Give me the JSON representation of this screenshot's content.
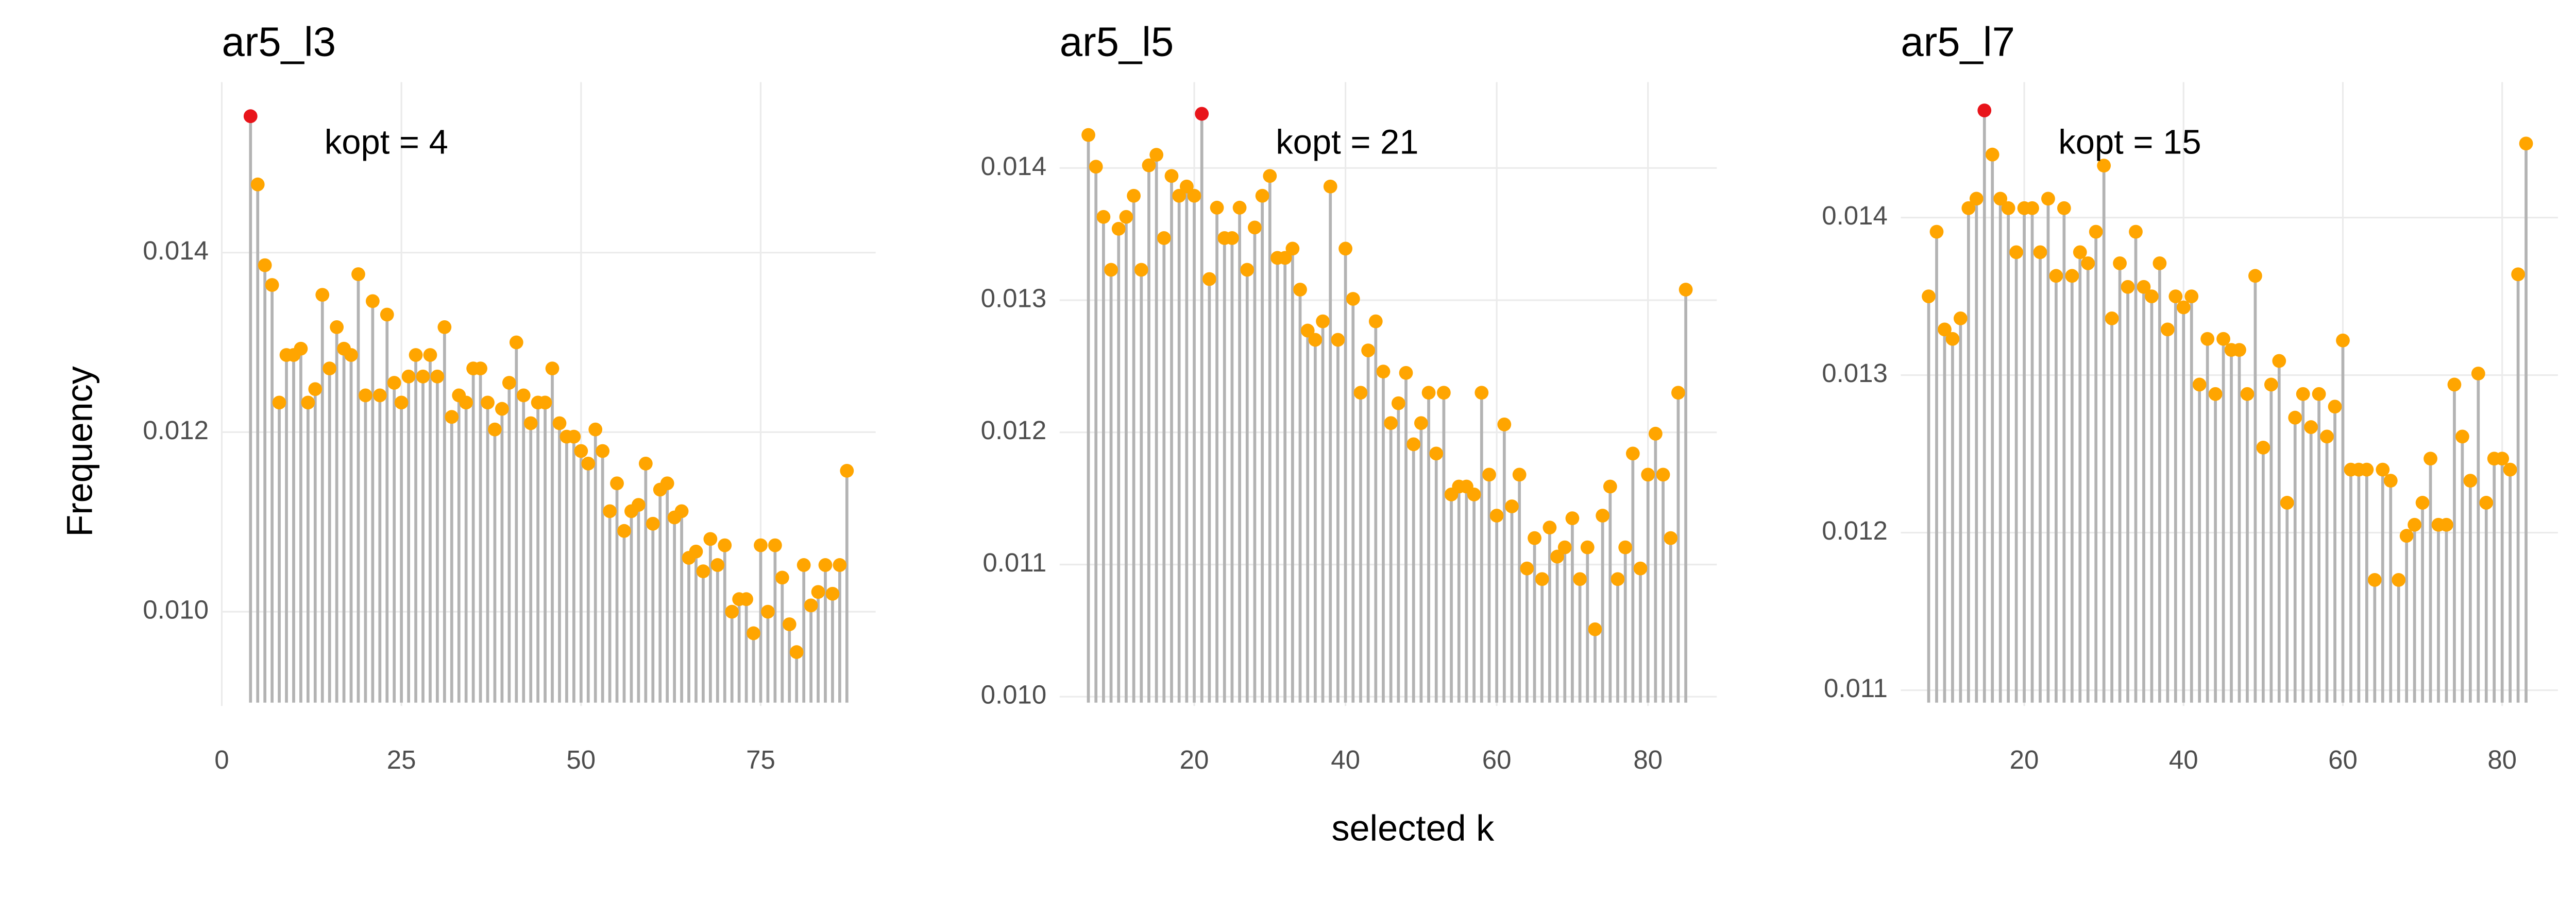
{
  "chart_data": [
    {
      "type": "lollipop",
      "title": "ar5_l3",
      "annotation": "kopt = 4",
      "ylabel": "Frequency",
      "x": [
        4,
        5,
        6,
        7,
        8,
        9,
        10,
        11,
        12,
        13,
        14,
        15,
        16,
        17,
        18,
        19,
        20,
        21,
        22,
        23,
        24,
        25,
        26,
        27,
        28,
        29,
        30,
        31,
        32,
        33,
        34,
        35,
        36,
        37,
        38,
        39,
        40,
        41,
        42,
        43,
        44,
        45,
        46,
        47,
        48,
        49,
        50,
        51,
        52,
        53,
        54,
        55,
        56,
        57,
        58,
        59,
        60,
        61,
        62,
        63,
        64,
        65,
        66,
        67,
        68,
        69,
        70,
        71,
        72,
        73,
        74,
        75,
        76,
        77,
        78,
        79,
        80,
        81,
        82,
        83,
        84,
        85,
        86,
        87
      ],
      "values": [
        0.01552,
        0.01476,
        0.01386,
        0.01364,
        0.01233,
        0.01286,
        0.01286,
        0.01293,
        0.01233,
        0.01248,
        0.01353,
        0.01271,
        0.01317,
        0.01293,
        0.01286,
        0.01376,
        0.01241,
        0.01346,
        0.01241,
        0.01331,
        0.01255,
        0.01233,
        0.01262,
        0.01286,
        0.01262,
        0.01286,
        0.01262,
        0.01317,
        0.01217,
        0.01241,
        0.01233,
        0.01271,
        0.01271,
        0.01233,
        0.01203,
        0.01226,
        0.01255,
        0.013,
        0.01241,
        0.0121,
        0.01233,
        0.01233,
        0.01271,
        0.0121,
        0.01195,
        0.01195,
        0.01179,
        0.01165,
        0.01203,
        0.01179,
        0.01112,
        0.01143,
        0.0109,
        0.01112,
        0.01119,
        0.01165,
        0.01098,
        0.01136,
        0.01143,
        0.01105,
        0.01112,
        0.0106,
        0.01067,
        0.01045,
        0.01081,
        0.01052,
        0.01074,
        0.01,
        0.01014,
        0.01014,
        0.00976,
        0.01074,
        0.01,
        0.01074,
        0.01038,
        0.00986,
        0.00955,
        0.01052,
        0.01007,
        0.01022,
        0.01052,
        0.0102,
        0.01052,
        0.01157
      ],
      "color": "#ffa500",
      "highlight_color": "#e8141a",
      "stem_color": "#b3b3b3",
      "xlim": [
        0,
        91
      ],
      "ylim": [
        0.00895,
        0.0159
      ],
      "xticks": [
        0,
        25,
        50,
        75
      ],
      "yticks": [
        {
          "value": 0.01,
          "label": "0.010"
        },
        0.012,
        0.014
      ],
      "grid": true
    },
    {
      "type": "lollipop",
      "title": "ar5_l5",
      "annotation": "kopt = 21",
      "xlabel": "selected k",
      "x": [
        6,
        7,
        8,
        9,
        10,
        11,
        12,
        13,
        14,
        15,
        16,
        17,
        18,
        19,
        20,
        21,
        22,
        23,
        24,
        25,
        26,
        27,
        28,
        29,
        30,
        31,
        32,
        33,
        34,
        35,
        36,
        37,
        38,
        39,
        40,
        41,
        42,
        43,
        44,
        45,
        46,
        47,
        48,
        49,
        50,
        51,
        52,
        53,
        54,
        55,
        56,
        57,
        58,
        59,
        60,
        61,
        62,
        63,
        64,
        65,
        66,
        67,
        68,
        69,
        70,
        71,
        72,
        73,
        74,
        75,
        76,
        77,
        78,
        79,
        80,
        81,
        82,
        83,
        84,
        85
      ],
      "values": [
        0.01425,
        0.01401,
        0.01363,
        0.01323,
        0.01354,
        0.01363,
        0.01379,
        0.01323,
        0.01402,
        0.0141,
        0.01347,
        0.01394,
        0.01379,
        0.01386,
        0.01379,
        0.01441,
        0.01316,
        0.0137,
        0.01347,
        0.01347,
        0.0137,
        0.01323,
        0.01355,
        0.01379,
        0.01394,
        0.01332,
        0.01332,
        0.01339,
        0.01308,
        0.01277,
        0.0127,
        0.01284,
        0.01386,
        0.0127,
        0.01339,
        0.01301,
        0.0123,
        0.01262,
        0.01284,
        0.01246,
        0.01207,
        0.01222,
        0.01245,
        0.01191,
        0.01207,
        0.0123,
        0.01184,
        0.0123,
        0.01153,
        0.01159,
        0.01159,
        0.01153,
        0.0123,
        0.01168,
        0.01137,
        0.01206,
        0.01144,
        0.01168,
        0.01097,
        0.0112,
        0.01089,
        0.01128,
        0.01106,
        0.01113,
        0.01135,
        0.01089,
        0.01113,
        0.01051,
        0.01137,
        0.01159,
        0.01089,
        0.01113,
        0.01184,
        0.01097,
        0.01168,
        0.01199,
        0.01168,
        0.0112,
        0.0123,
        0.01308
      ],
      "color": "#ffa500",
      "highlight_color": "#e8141a",
      "stem_color": "#b3b3b3",
      "xlim": [
        2.2,
        89.1
      ],
      "ylim": [
        0.00993,
        0.01465
      ],
      "xticks": [
        20,
        40,
        60,
        80
      ],
      "yticks": [
        {
          "value": 0.01,
          "label": "0.010"
        },
        0.011,
        0.012,
        0.013,
        0.014
      ],
      "grid": true
    },
    {
      "type": "lollipop",
      "title": "ar5_l7",
      "annotation": "kopt = 15",
      "x": [
        8,
        9,
        10,
        11,
        12,
        13,
        14,
        15,
        16,
        17,
        18,
        19,
        20,
        21,
        22,
        23,
        24,
        25,
        26,
        27,
        28,
        29,
        30,
        31,
        32,
        33,
        34,
        35,
        36,
        37,
        38,
        39,
        40,
        41,
        42,
        43,
        44,
        45,
        46,
        47,
        48,
        49,
        50,
        51,
        52,
        53,
        54,
        55,
        56,
        57,
        58,
        59,
        60,
        61,
        62,
        63,
        64,
        65,
        66,
        67,
        68,
        69,
        70,
        71,
        72,
        73,
        74,
        75,
        76,
        77,
        78,
        79,
        80,
        81,
        82,
        83
      ],
      "values": [
        0.0135,
        0.01391,
        0.01329,
        0.01323,
        0.01336,
        0.01406,
        0.01412,
        0.01468,
        0.0144,
        0.01412,
        0.01406,
        0.01378,
        0.01406,
        0.01406,
        0.01378,
        0.01412,
        0.01363,
        0.01406,
        0.01363,
        0.01378,
        0.01371,
        0.01391,
        0.01433,
        0.01336,
        0.01371,
        0.01356,
        0.01391,
        0.01356,
        0.0135,
        0.01371,
        0.01329,
        0.0135,
        0.01343,
        0.0135,
        0.01294,
        0.01323,
        0.01288,
        0.01323,
        0.01316,
        0.01316,
        0.01288,
        0.01363,
        0.01254,
        0.01294,
        0.01309,
        0.01219,
        0.01273,
        0.01288,
        0.01267,
        0.01288,
        0.01261,
        0.0128,
        0.01322,
        0.0124,
        0.0124,
        0.0124,
        0.0117,
        0.0124,
        0.01233,
        0.0117,
        0.01198,
        0.01205,
        0.01219,
        0.01247,
        0.01205,
        0.01205,
        0.01294,
        0.01261,
        0.01233,
        0.01301,
        0.01219,
        0.01247,
        0.01247,
        0.0124,
        0.01364,
        0.01447
      ],
      "color": "#ffa500",
      "highlight_color": "#e8141a",
      "stem_color": "#b3b3b3",
      "xlim": [
        4.5,
        87.0
      ],
      "ylim": [
        0.0109,
        0.01486
      ],
      "xticks": [
        20,
        40,
        60,
        80
      ],
      "yticks": [
        0.011,
        0.012,
        0.013,
        0.014
      ],
      "grid": true
    }
  ]
}
